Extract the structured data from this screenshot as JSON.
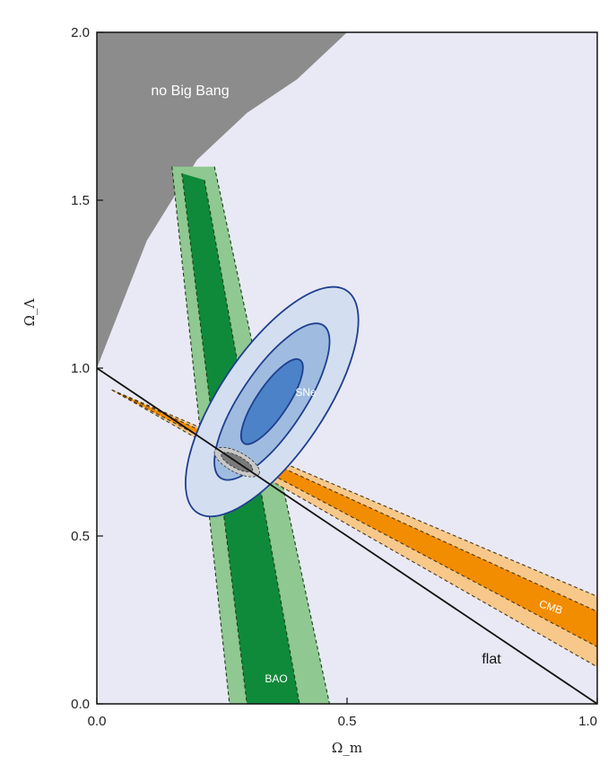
{
  "chart_data": {
    "type": "contour",
    "xlabel": "Ω_m",
    "ylabel": "Ω_Λ",
    "xlim": [
      0.0,
      1.0
    ],
    "ylim": [
      0.0,
      2.0
    ],
    "x_ticks": [
      {
        "value": 0.0,
        "label": "0.0"
      },
      {
        "value": 0.5,
        "label": "0.5"
      },
      {
        "value": 1.0,
        "label": "1.0"
      }
    ],
    "y_ticks": [
      {
        "value": 0.0,
        "label": "0.0"
      },
      {
        "value": 0.5,
        "label": "0.5"
      },
      {
        "value": 1.0,
        "label": "1.0"
      },
      {
        "value": 1.5,
        "label": "1.5"
      },
      {
        "value": 2.0,
        "label": "2.0"
      }
    ],
    "colors": {
      "background": "#e9e9f5",
      "no_big_bang": "#8c8c8c",
      "sne_1": "#d3dff0",
      "sne_2": "#9fbce0",
      "sne_3": "#4b82c8",
      "sne_edge": "#1f3f8f",
      "bao_dark": "#0f8a3a",
      "bao_light": "#8fc890",
      "cmb_dark": "#f28c00",
      "cmb_light": "#f7c88a"
    },
    "regions": {
      "no_big_bang": {
        "label": "no Big Bang",
        "boundary": [
          [
            0.0,
            1.0
          ],
          [
            0.1,
            1.38
          ],
          [
            0.2,
            1.62
          ],
          [
            0.3,
            1.76
          ],
          [
            0.4,
            1.86
          ],
          [
            0.5,
            2.0
          ]
        ]
      },
      "sne": {
        "label": "SNe",
        "center": [
          0.35,
          0.9
        ],
        "semi_axes": [
          [
            0.64,
            0.25
          ],
          [
            0.44,
            0.15
          ],
          [
            0.24,
            0.075
          ]
        ],
        "angle_deg": 56
      },
      "bao": {
        "label": "BAO",
        "lines": {
          "outer_left": [
            [
              0.15,
              1.6
            ],
            [
              0.265,
              0.0
            ]
          ],
          "inner_left": [
            [
              0.17,
              1.58
            ],
            [
              0.3,
              0.0
            ]
          ],
          "inner_right": [
            [
              0.215,
              1.56
            ],
            [
              0.405,
              0.0
            ]
          ],
          "outer_right": [
            [
              0.235,
              1.6
            ],
            [
              0.465,
              0.0
            ]
          ]
        }
      },
      "cmb": {
        "label": "CMB",
        "lines": {
          "outer_top": [
            [
              0.03,
              0.935
            ],
            [
              1.0,
              0.32
            ]
          ],
          "inner_top": [
            [
              0.03,
              0.935
            ],
            [
              1.0,
              0.275
            ]
          ],
          "inner_bottom": [
            [
              0.03,
              0.935
            ],
            [
              1.0,
              0.17
            ]
          ],
          "outer_bottom": [
            [
              0.03,
              0.935
            ],
            [
              1.0,
              0.11
            ]
          ]
        }
      },
      "joint": {
        "center": [
          0.28,
          0.72
        ],
        "semi_axes": [
          [
            0.1,
            0.03
          ],
          [
            0.07,
            0.018
          ]
        ],
        "angle_deg": -28
      }
    },
    "flat_line": {
      "label": "flat",
      "points": [
        [
          0.0,
          1.0
        ],
        [
          1.0,
          0.0
        ]
      ]
    }
  }
}
